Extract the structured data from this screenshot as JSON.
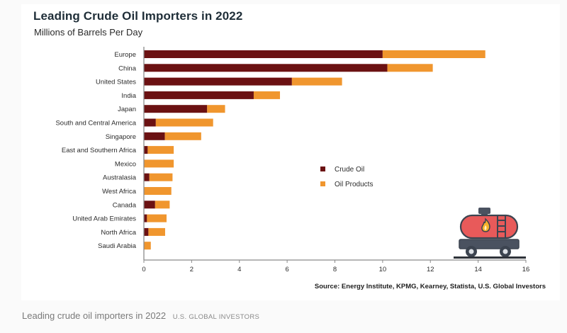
{
  "caption": {
    "text": "Leading crude oil importers in 2022",
    "brand": "U.S. GLOBAL INVESTORS"
  },
  "colors": {
    "crude": "#6b1112",
    "products": "#f0962e",
    "axis": "#8a8a8a",
    "title": "#1f2e38"
  },
  "icon": "oil-tanker-wagon-icon",
  "chart_data": {
    "type": "bar",
    "orientation": "horizontal",
    "stacked": true,
    "title": "Leading Crude Oil Importers in 2022",
    "subtitle": "Millions of Barrels Per Day",
    "xlabel": "",
    "ylabel": "",
    "xlim": [
      0,
      16
    ],
    "xticks": [
      0,
      2,
      4,
      6,
      8,
      10,
      12,
      14,
      16
    ],
    "grid": false,
    "legend_position": "center-right",
    "source": "Source: Energy Institute, KPMG, Kearney, Statista, U.S. Global Investors",
    "categories": [
      "Europe",
      "China",
      "United States",
      "India",
      "Japan",
      "South and Central America",
      "Singapore",
      "East and Southern Africa",
      "Mexico",
      "Australasia",
      "West Africa",
      "Canada",
      "United Arab Emirates",
      "North Africa",
      "Saudi Arabia"
    ],
    "series": [
      {
        "name": "Crude Oil",
        "values": [
          10.0,
          10.2,
          6.2,
          4.6,
          2.65,
          0.5,
          0.88,
          0.16,
          0.0,
          0.23,
          0.0,
          0.47,
          0.13,
          0.19,
          0.0
        ]
      },
      {
        "name": "Oil Products",
        "values": [
          4.3,
          1.9,
          2.1,
          1.1,
          0.75,
          2.4,
          1.52,
          1.09,
          1.25,
          0.97,
          1.15,
          0.61,
          0.82,
          0.7,
          0.29
        ]
      }
    ]
  }
}
